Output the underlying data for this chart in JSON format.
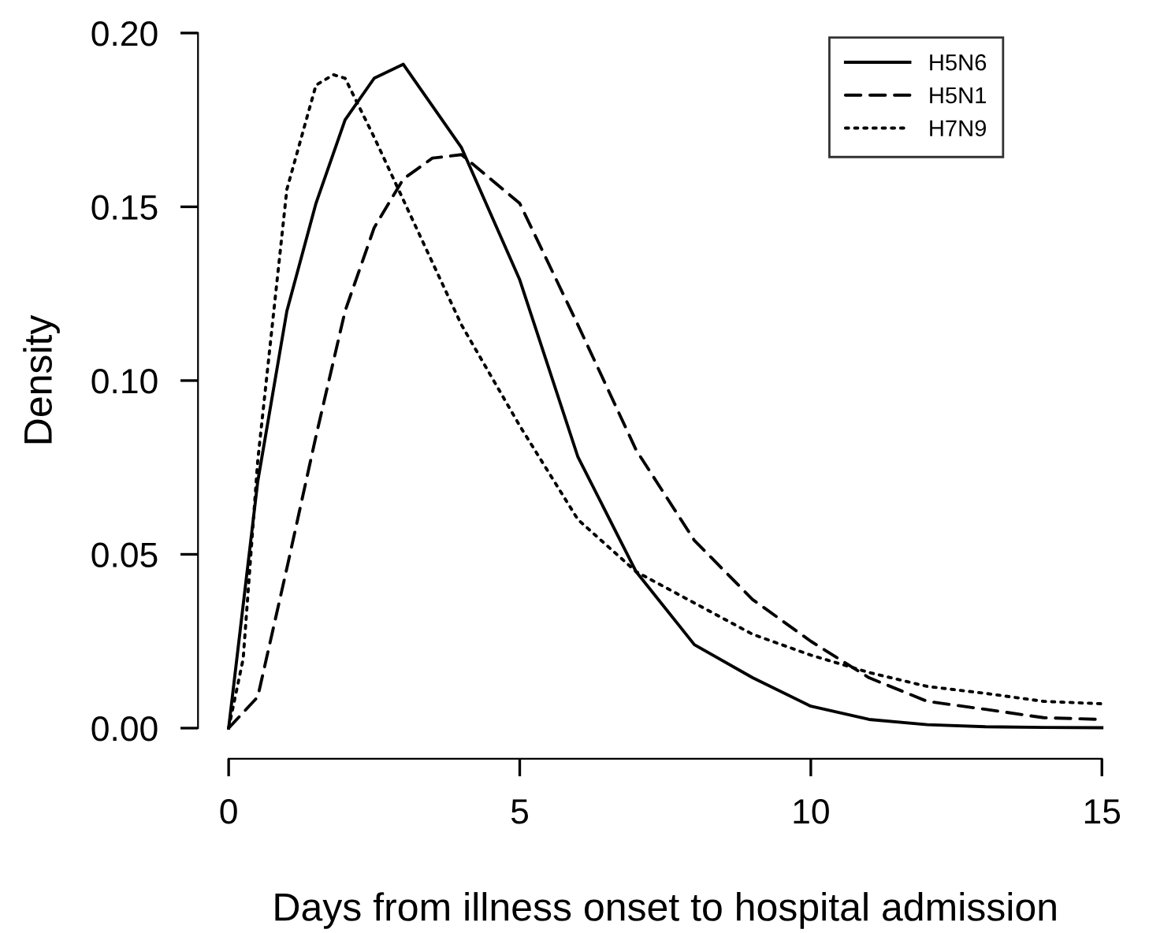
{
  "chart_data": {
    "type": "line",
    "xlabel": "Days from illness onset to hospital admission",
    "ylabel": "Density",
    "xlim": [
      0,
      15
    ],
    "ylim": [
      0,
      0.2
    ],
    "xticks": [
      0,
      5,
      10,
      15
    ],
    "yticks": [
      {
        "value": 0,
        "label": "0.00"
      },
      {
        "value": 0.05,
        "label": "0.05"
      },
      {
        "value": 0.1,
        "label": "0.10"
      },
      {
        "value": 0.15,
        "label": "0.15"
      },
      {
        "value": 0.2,
        "label": "0.20"
      }
    ],
    "grid": false,
    "legend": "top right",
    "series": [
      {
        "name": "H5N6",
        "color": "#000000",
        "line_style": "solid",
        "x": [
          0,
          0.5,
          1,
          1.5,
          2,
          2.5,
          3,
          4,
          5,
          6,
          7,
          8,
          9,
          10,
          11,
          12,
          13,
          14,
          15
        ],
        "values": [
          0,
          0.071,
          0.12,
          0.151,
          0.175,
          0.187,
          0.191,
          0.167,
          0.129,
          0.078,
          0.045,
          0.024,
          0.0145,
          0.0063,
          0.0025,
          0.001,
          0.0004,
          0.0002,
          0.0001
        ]
      },
      {
        "name": "H5N1",
        "color": "#000000",
        "line_style": "dashed",
        "x": [
          0,
          0.5,
          1,
          1.5,
          2,
          2.5,
          3,
          3.5,
          4,
          5,
          6,
          7,
          8,
          9,
          10,
          11,
          12,
          13,
          14,
          15
        ],
        "values": [
          0,
          0.009,
          0.046,
          0.084,
          0.12,
          0.144,
          0.158,
          0.164,
          0.165,
          0.151,
          0.116,
          0.08,
          0.054,
          0.037,
          0.025,
          0.0145,
          0.0077,
          0.0054,
          0.003,
          0.0025
        ]
      },
      {
        "name": "H7N9",
        "color": "#000000",
        "line_style": "dotted",
        "x": [
          0,
          0.25,
          0.5,
          1,
          1.5,
          1.8,
          2,
          2.5,
          3,
          4,
          5,
          6,
          7,
          8,
          9,
          10,
          11,
          12,
          13,
          14,
          15
        ],
        "values": [
          0,
          0.02,
          0.077,
          0.155,
          0.185,
          0.188,
          0.187,
          0.17,
          0.152,
          0.116,
          0.087,
          0.06,
          0.045,
          0.036,
          0.027,
          0.021,
          0.016,
          0.012,
          0.01,
          0.0077,
          0.007
        ]
      }
    ]
  }
}
